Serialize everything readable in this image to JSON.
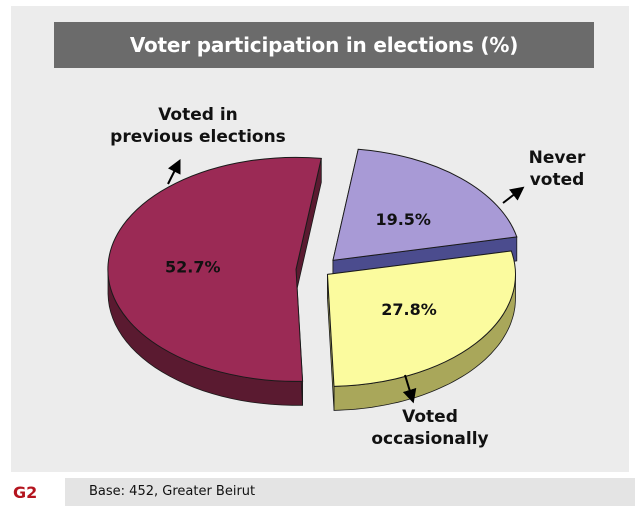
{
  "chart_data": {
    "type": "pie",
    "title": "Voter participation in elections (%)",
    "slices": [
      {
        "label_lines": [
          "Voted in",
          "previous elections"
        ],
        "value": 52.7,
        "value_label": "52.7%",
        "color": "#9b2a55",
        "side_color": "#5a1a30"
      },
      {
        "label_lines": [
          "Never",
          "voted"
        ],
        "value": 19.5,
        "value_label": "19.5%",
        "color": "#a89ad6",
        "side_color": "#4b4c8e"
      },
      {
        "label_lines": [
          "Voted",
          "occasionally"
        ],
        "value": 27.8,
        "value_label": "27.8%",
        "color": "#fbfb9e",
        "side_color": "#a9a75a"
      }
    ]
  },
  "footer": {
    "figure_id": "G2",
    "base_note": "Base: 452, Greater Beirut"
  }
}
